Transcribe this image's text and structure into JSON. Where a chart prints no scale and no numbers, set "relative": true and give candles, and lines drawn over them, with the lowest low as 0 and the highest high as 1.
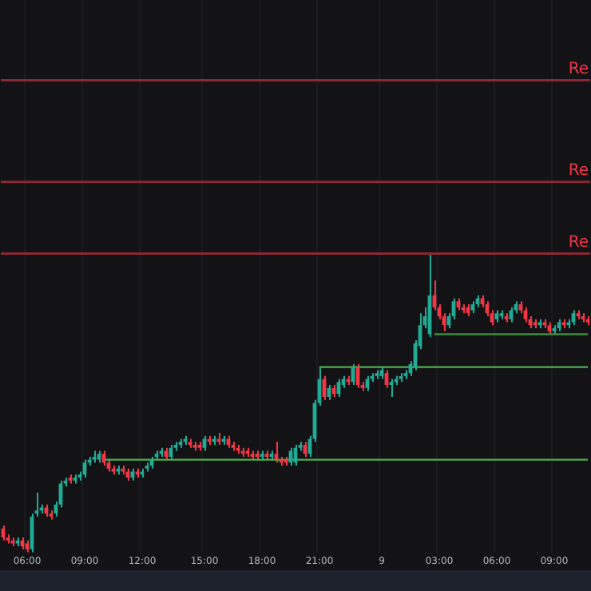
{
  "chart_data": {
    "type": "candlestick",
    "relative": true,
    "tick_labels": "x",
    "grid": "x",
    "legend": false,
    "categories": [
      null,
      null,
      null,
      null,
      null,
      "06:00",
      null,
      null,
      null,
      null,
      null,
      null,
      null,
      null,
      null,
      null,
      null,
      "09:00",
      null,
      null,
      null,
      null,
      null,
      null,
      null,
      null,
      null,
      null,
      null,
      "12:00",
      null,
      null,
      null,
      null,
      null,
      null,
      null,
      null,
      null,
      null,
      null,
      null,
      "15:00",
      null,
      null,
      null,
      null,
      null,
      null,
      null,
      null,
      null,
      null,
      null,
      "18:00",
      null,
      null,
      null,
      null,
      null,
      null,
      null,
      null,
      null,
      null,
      null,
      "21:00",
      null,
      null,
      null,
      null,
      null,
      null,
      null,
      null,
      null,
      null,
      null,
      null,
      "9",
      null,
      null,
      null,
      null,
      null,
      null,
      null,
      null,
      null,
      null,
      null,
      "03:00",
      null,
      null,
      null,
      null,
      null,
      null,
      null,
      null,
      null,
      null,
      null,
      "06:00",
      null,
      null,
      null,
      null,
      null,
      null,
      null,
      null,
      null,
      null,
      null,
      "09:00",
      null,
      null,
      null,
      null,
      null,
      null,
      null
    ],
    "ohlc": [
      [
        0.08,
        0.09,
        0.04,
        0.05
      ],
      [
        0.05,
        0.06,
        0.03,
        0.04
      ],
      [
        0.04,
        0.05,
        0.02,
        0.03
      ],
      [
        0.03,
        0.05,
        0.02,
        0.04
      ],
      [
        0.04,
        0.05,
        0.01,
        0.02
      ],
      [
        0.03,
        0.04,
        0,
        0.01
      ],
      [
        0.01,
        0.13,
        0,
        0.12
      ],
      [
        0.13,
        0.2,
        0.12,
        0.14
      ],
      [
        0.14,
        0.16,
        0.13,
        0.15
      ],
      [
        0.15,
        0.16,
        0.12,
        0.13
      ],
      [
        0.13,
        0.14,
        0.11,
        0.12
      ],
      [
        0.13,
        0.17,
        0.12,
        0.16
      ],
      [
        0.16,
        0.24,
        0.15,
        0.23
      ],
      [
        0.23,
        0.25,
        0.22,
        0.24
      ],
      [
        0.25,
        0.26,
        0.23,
        0.24
      ],
      [
        0.24,
        0.26,
        0.23,
        0.25
      ],
      [
        0.25,
        0.27,
        0.24,
        0.26
      ],
      [
        0.26,
        0.31,
        0.25,
        0.3
      ],
      [
        0.3,
        0.32,
        0.29,
        0.31
      ],
      [
        0.31,
        0.34,
        0.3,
        0.32
      ],
      [
        0.31,
        0.34,
        0.3,
        0.33
      ],
      [
        0.33,
        0.34,
        0.29,
        0.3
      ],
      [
        0.3,
        0.31,
        0.27,
        0.28
      ],
      [
        0.28,
        0.29,
        0.26,
        0.27
      ],
      [
        0.27,
        0.29,
        0.26,
        0.28
      ],
      [
        0.28,
        0.29,
        0.26,
        0.27
      ],
      [
        0.27,
        0.28,
        0.24,
        0.25
      ],
      [
        0.25,
        0.28,
        0.24,
        0.27
      ],
      [
        0.27,
        0.28,
        0.25,
        0.26
      ],
      [
        0.26,
        0.28,
        0.25,
        0.27
      ],
      [
        0.28,
        0.3,
        0.27,
        0.29
      ],
      [
        0.29,
        0.32,
        0.28,
        0.31
      ],
      [
        0.32,
        0.34,
        0.31,
        0.33
      ],
      [
        0.33,
        0.35,
        0.32,
        0.34
      ],
      [
        0.34,
        0.35,
        0.31,
        0.32
      ],
      [
        0.32,
        0.36,
        0.31,
        0.35
      ],
      [
        0.35,
        0.37,
        0.34,
        0.36
      ],
      [
        0.36,
        0.38,
        0.35,
        0.37
      ],
      [
        0.37,
        0.39,
        0.36,
        0.38
      ],
      [
        0.37,
        0.38,
        0.35,
        0.36
      ],
      [
        0.36,
        0.37,
        0.34,
        0.35
      ],
      [
        0.36,
        0.37,
        0.34,
        0.35
      ],
      [
        0.35,
        0.39,
        0.34,
        0.38
      ],
      [
        0.38,
        0.39,
        0.36,
        0.37
      ],
      [
        0.37,
        0.39,
        0.36,
        0.38
      ],
      [
        0.38,
        0.4,
        0.36,
        0.37
      ],
      [
        0.37,
        0.39,
        0.36,
        0.38
      ],
      [
        0.38,
        0.39,
        0.35,
        0.36
      ],
      [
        0.36,
        0.37,
        0.34,
        0.35
      ],
      [
        0.35,
        0.36,
        0.33,
        0.34
      ],
      [
        0.34,
        0.35,
        0.32,
        0.33
      ],
      [
        0.34,
        0.35,
        0.32,
        0.33
      ],
      [
        0.33,
        0.34,
        0.31,
        0.32
      ],
      [
        0.33,
        0.34,
        0.31,
        0.32
      ],
      [
        0.32,
        0.34,
        0.31,
        0.33
      ],
      [
        0.33,
        0.34,
        0.31,
        0.32
      ],
      [
        0.32,
        0.34,
        0.31,
        0.33
      ],
      [
        0.33,
        0.37,
        0.3,
        0.31
      ],
      [
        0.31,
        0.32,
        0.29,
        0.3
      ],
      [
        0.31,
        0.32,
        0.29,
        0.3
      ],
      [
        0.3,
        0.35,
        0.29,
        0.34
      ],
      [
        0.3,
        0.36,
        0.29,
        0.35
      ],
      [
        0.35,
        0.37,
        0.34,
        0.36
      ],
      [
        0.36,
        0.37,
        0.32,
        0.33
      ],
      [
        0.33,
        0.39,
        0.32,
        0.38
      ],
      [
        0.38,
        0.51,
        0.37,
        0.5
      ],
      [
        0.5,
        0.62,
        0.49,
        0.58
      ],
      [
        0.58,
        0.59,
        0.51,
        0.52
      ],
      [
        0.52,
        0.56,
        0.51,
        0.55
      ],
      [
        0.55,
        0.56,
        0.52,
        0.53
      ],
      [
        0.53,
        0.58,
        0.52,
        0.57
      ],
      [
        0.56,
        0.59,
        0.55,
        0.58
      ],
      [
        0.58,
        0.59,
        0.56,
        0.57
      ],
      [
        0.57,
        0.63,
        0.56,
        0.62
      ],
      [
        0.62,
        0.63,
        0.55,
        0.56
      ],
      [
        0.56,
        0.57,
        0.54,
        0.55
      ],
      [
        0.55,
        0.59,
        0.54,
        0.58
      ],
      [
        0.58,
        0.6,
        0.57,
        0.59
      ],
      [
        0.59,
        0.61,
        0.58,
        0.6
      ],
      [
        0.59,
        0.62,
        0.58,
        0.61
      ],
      [
        0.6,
        0.61,
        0.55,
        0.56
      ],
      [
        0.56,
        0.58,
        0.52,
        0.57
      ],
      [
        0.57,
        0.59,
        0.56,
        0.58
      ],
      [
        0.58,
        0.6,
        0.57,
        0.59
      ],
      [
        0.59,
        0.61,
        0.58,
        0.6
      ],
      [
        0.6,
        0.64,
        0.59,
        0.63
      ],
      [
        0.62,
        0.71,
        0.61,
        0.7
      ],
      [
        0.69,
        0.8,
        0.68,
        0.76
      ],
      [
        0.76,
        0.82,
        0.75,
        0.79
      ],
      [
        0.73,
        1,
        0.72,
        0.86
      ],
      [
        0.86,
        0.91,
        0.81,
        0.82
      ],
      [
        0.82,
        0.83,
        0.78,
        0.79
      ],
      [
        0.79,
        0.8,
        0.74,
        0.76
      ],
      [
        0.76,
        0.8,
        0.75,
        0.79
      ],
      [
        0.79,
        0.85,
        0.78,
        0.84
      ],
      [
        0.84,
        0.85,
        0.81,
        0.82
      ],
      [
        0.82,
        0.83,
        0.8,
        0.81
      ],
      [
        0.82,
        0.83,
        0.79,
        0.8
      ],
      [
        0.81,
        0.84,
        0.8,
        0.83
      ],
      [
        0.83,
        0.86,
        0.82,
        0.85
      ],
      [
        0.85,
        0.86,
        0.82,
        0.83
      ],
      [
        0.83,
        0.84,
        0.79,
        0.8
      ],
      [
        0.8,
        0.81,
        0.76,
        0.77
      ],
      [
        0.78,
        0.81,
        0.77,
        0.8
      ],
      [
        0.79,
        0.81,
        0.78,
        0.8
      ],
      [
        0.79,
        0.8,
        0.77,
        0.78
      ],
      [
        0.78,
        0.82,
        0.77,
        0.81
      ],
      [
        0.81,
        0.84,
        0.8,
        0.83
      ],
      [
        0.83,
        0.84,
        0.8,
        0.81
      ],
      [
        0.81,
        0.82,
        0.77,
        0.78
      ],
      [
        0.78,
        0.79,
        0.75,
        0.76
      ],
      [
        0.77,
        0.78,
        0.75,
        0.76
      ],
      [
        0.76,
        0.78,
        0.75,
        0.77
      ],
      [
        0.77,
        0.78,
        0.75,
        0.76
      ],
      [
        0.76,
        0.77,
        0.73,
        0.74
      ],
      [
        0.74,
        0.76,
        0.73,
        0.75
      ],
      [
        0.75,
        0.78,
        0.74,
        0.77
      ],
      [
        0.77,
        0.78,
        0.75,
        0.76
      ],
      [
        0.76,
        0.78,
        0.75,
        0.77
      ],
      [
        0.77,
        0.81,
        0.76,
        0.8
      ],
      [
        0.8,
        0.81,
        0.78,
        0.79
      ],
      [
        0.79,
        0.8,
        0.77,
        0.78
      ],
      [
        0.78,
        0.79,
        0.76,
        0.77
      ]
    ],
    "colors": [
      "#f23645",
      "#f23645",
      "#f23645",
      "#22ab94",
      "#f23645",
      "#f23645",
      "#22ab94",
      "#22ab94",
      "#22ab94",
      "#f23645",
      "#f23645",
      "#22ab94",
      "#22ab94",
      "#22ab94",
      "#f23645",
      "#22ab94",
      "#22ab94",
      "#22ab94",
      "#22ab94",
      "#22ab94",
      "#22ab94",
      "#f23645",
      "#f23645",
      "#f23645",
      "#22ab94",
      "#f23645",
      "#f23645",
      "#22ab94",
      "#f23645",
      "#22ab94",
      "#22ab94",
      "#22ab94",
      "#22ab94",
      "#22ab94",
      "#f23645",
      "#22ab94",
      "#22ab94",
      "#22ab94",
      "#22ab94",
      "#f23645",
      "#f23645",
      "#f23645",
      "#22ab94",
      "#f23645",
      "#22ab94",
      "#f23645",
      "#22ab94",
      "#f23645",
      "#f23645",
      "#f23645",
      "#f23645",
      "#f23645",
      "#f23645",
      "#f23645",
      "#22ab94",
      "#f23645",
      "#22ab94",
      "#f23645",
      "#f23645",
      "#f23645",
      "#22ab94",
      "#22ab94",
      "#22ab94",
      "#f23645",
      "#22ab94",
      "#22ab94",
      "#22ab94",
      "#f23645",
      "#22ab94",
      "#f23645",
      "#22ab94",
      "#22ab94",
      "#f23645",
      "#22ab94",
      "#f23645",
      "#f23645",
      "#22ab94",
      "#22ab94",
      "#22ab94",
      "#22ab94",
      "#f23645",
      "#22ab94",
      "#22ab94",
      "#22ab94",
      "#22ab94",
      "#22ab94",
      "#22ab94",
      "#22ab94",
      "#22ab94",
      "#22ab94",
      "#f23645",
      "#f23645",
      "#f23645",
      "#22ab94",
      "#22ab94",
      "#f23645",
      "#f23645",
      "#f23645",
      "#22ab94",
      "#22ab94",
      "#f23645",
      "#f23645",
      "#f23645",
      "#22ab94",
      "#22ab94",
      "#f23645",
      "#22ab94",
      "#22ab94",
      "#f23645",
      "#f23645",
      "#f23645",
      "#f23645",
      "#22ab94",
      "#f23645",
      "#f23645",
      "#22ab94",
      "#22ab94",
      "#f23645",
      "#22ab94",
      "#22ab94",
      "#f23645",
      "#f23645",
      "#f23645"
    ],
    "series": [
      {
        "type": "line",
        "color": "#4caf50",
        "values": [
          null,
          null,
          null,
          null,
          null,
          null,
          null,
          null,
          null,
          null,
          null,
          null,
          null,
          null,
          null,
          null,
          null,
          null,
          null,
          null,
          null,
          0.31,
          0.31,
          0.31,
          0.31,
          0.31,
          0.31,
          0.31,
          0.31,
          0.31,
          0.31,
          0.31,
          0.31,
          0.31,
          0.31,
          0.31,
          0.31,
          0.31,
          0.31,
          0.31,
          0.31,
          0.31,
          0.31,
          0.31,
          0.31,
          0.31,
          0.31,
          0.31,
          0.31,
          0.31,
          0.31,
          0.31,
          0.31,
          0.31,
          0.31,
          0.31,
          0.31,
          0.31,
          0.31,
          0.31,
          0.31,
          0.31,
          0.31,
          0.31,
          0.31,
          0.31,
          0.31,
          0.31,
          0.31,
          0.31,
          0.31,
          0.31,
          0.31,
          0.31,
          0.31,
          0.31,
          0.31,
          0.31,
          0.31,
          0.31,
          0.31,
          0.31,
          0.31,
          0.31,
          0.31,
          0.31,
          0.31,
          0.31,
          0.31,
          0.31,
          0.31,
          0.31,
          0.31,
          0.31,
          0.31,
          0.31,
          0.31,
          0.31,
          0.31,
          0.31,
          0.31,
          0.31,
          0.31,
          0.31,
          0.31,
          0.31,
          0.31,
          0.31,
          0.31,
          0.31,
          0.31,
          0.31,
          0.31,
          0.31,
          0.31,
          0.31,
          0.31,
          0.31,
          0.31,
          0.31,
          0.31,
          0.31,
          0.31
        ]
      },
      {
        "type": "line",
        "color": "#4caf50",
        "values": [
          null,
          null,
          null,
          null,
          null,
          null,
          null,
          null,
          null,
          null,
          null,
          null,
          null,
          null,
          null,
          null,
          null,
          null,
          null,
          null,
          null,
          null,
          null,
          null,
          null,
          null,
          null,
          null,
          null,
          null,
          null,
          null,
          null,
          null,
          null,
          null,
          null,
          null,
          null,
          null,
          null,
          null,
          null,
          null,
          null,
          null,
          null,
          null,
          null,
          null,
          null,
          null,
          null,
          null,
          null,
          null,
          null,
          null,
          null,
          null,
          null,
          null,
          null,
          null,
          null,
          null,
          0.62,
          0.62,
          0.62,
          0.62,
          0.62,
          0.62,
          0.62,
          0.62,
          0.62,
          0.62,
          0.62,
          0.62,
          0.62,
          0.62,
          0.62,
          0.62,
          0.62,
          0.62,
          0.62,
          0.62,
          0.62,
          0.62,
          0.62,
          0.62,
          0.62,
          0.62,
          0.62,
          0.62,
          0.62,
          0.62,
          0.62,
          0.62,
          0.62,
          0.62,
          0.62,
          0.62,
          0.62,
          0.62,
          0.62,
          0.62,
          0.62,
          0.62,
          0.62,
          0.62,
          0.62,
          0.62,
          0.62,
          0.62,
          0.62,
          0.62,
          0.62,
          0.62,
          0.62,
          0.62,
          0.62,
          0.62,
          0.62
        ]
      },
      {
        "type": "line",
        "color": "#3d8c40",
        "values": [
          null,
          null,
          null,
          null,
          null,
          null,
          null,
          null,
          null,
          null,
          null,
          null,
          null,
          null,
          null,
          null,
          null,
          null,
          null,
          null,
          null,
          null,
          null,
          null,
          null,
          null,
          null,
          null,
          null,
          null,
          null,
          null,
          null,
          null,
          null,
          null,
          null,
          null,
          null,
          null,
          null,
          null,
          null,
          null,
          null,
          null,
          null,
          null,
          null,
          null,
          null,
          null,
          null,
          null,
          null,
          null,
          null,
          null,
          null,
          null,
          null,
          null,
          null,
          null,
          null,
          null,
          null,
          null,
          null,
          null,
          null,
          null,
          null,
          null,
          null,
          null,
          null,
          null,
          null,
          null,
          null,
          null,
          null,
          null,
          null,
          null,
          null,
          null,
          null,
          null,
          0.73,
          0.73,
          0.73,
          0.73,
          0.73,
          0.73,
          0.73,
          0.73,
          0.73,
          0.73,
          0.73,
          0.73,
          0.73,
          0.73,
          0.73,
          0.73,
          0.73,
          0.73,
          0.73,
          0.73,
          0.73,
          0.73,
          0.73,
          0.73,
          0.73,
          0.73,
          0.73,
          0.73,
          0.73,
          0.73,
          0.73,
          0.73,
          0.73
        ]
      }
    ],
    "ref_lines": [
      {
        "axis": "y",
        "value": 1.58,
        "label": "Re",
        "color": "#8c2633"
      },
      {
        "axis": "y",
        "value": 1.24,
        "label": "Re",
        "color": "#8c2633"
      },
      {
        "axis": "y",
        "value": 1,
        "label": "Re",
        "color": "#8c2633"
      }
    ]
  }
}
